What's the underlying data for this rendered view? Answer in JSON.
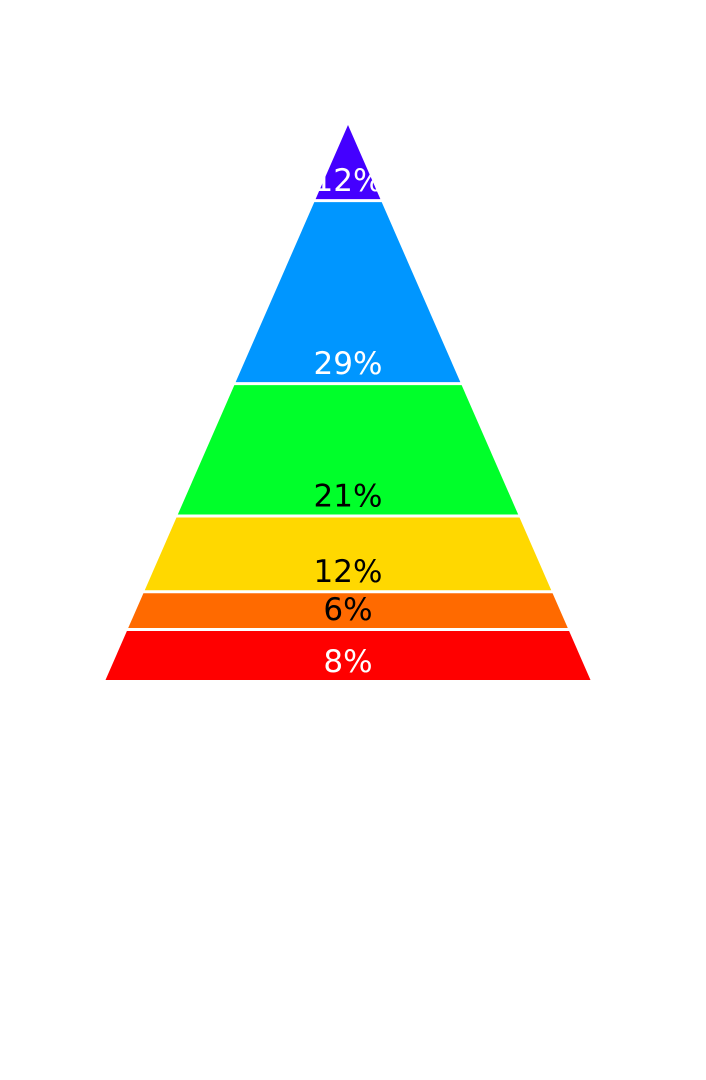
{
  "chart_data": {
    "type": "pyramid",
    "title": "",
    "legend": "none",
    "segments": [
      {
        "label": "12%",
        "value": 12,
        "color": "#4400FF",
        "label_color": "#FFFFFF"
      },
      {
        "label": "29%",
        "value": 29,
        "color": "#0096FF",
        "label_color": "#FFFFFF"
      },
      {
        "label": "21%",
        "value": 21,
        "color": "#00FF2A",
        "label_color": "#000000"
      },
      {
        "label": "12%",
        "value": 12,
        "color": "#FFD800",
        "label_color": "#000000"
      },
      {
        "label": "6%",
        "value": 6,
        "color": "#FF6A00",
        "label_color": "#000000"
      },
      {
        "label": "8%",
        "value": 8,
        "color": "#FF0000",
        "label_color": "#FFFFFF"
      }
    ],
    "order": "top-to-bottom"
  }
}
